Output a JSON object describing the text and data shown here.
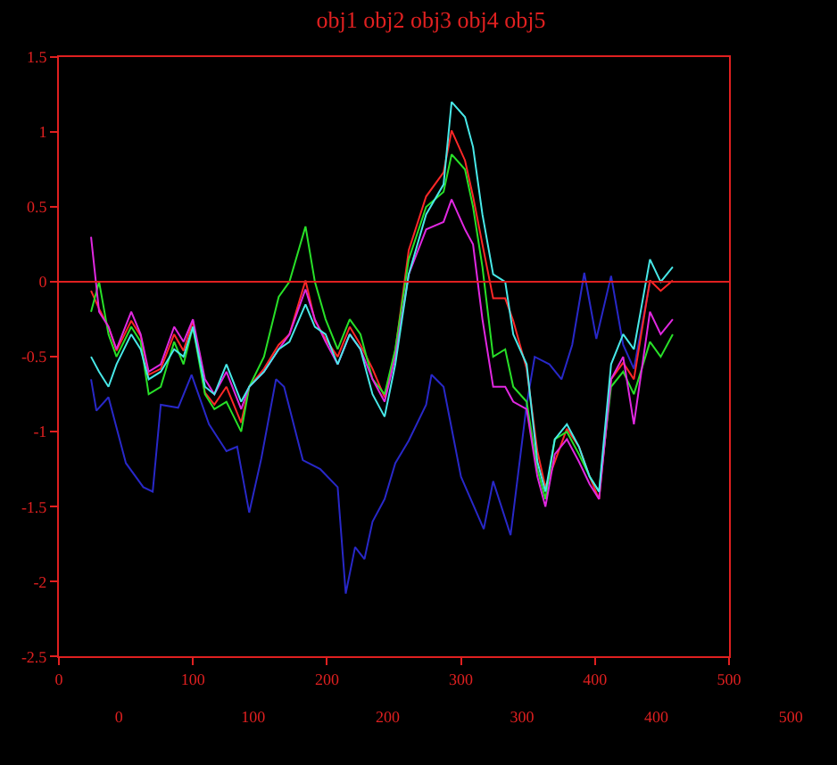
{
  "chart_data": {
    "type": "line",
    "title": "obj1 obj2 obj3 obj4 obj5",
    "x": [
      24,
      30,
      37,
      43,
      54,
      61,
      67,
      76,
      86,
      93,
      100,
      109,
      116,
      125,
      136,
      142,
      153,
      164,
      172,
      184,
      191,
      199,
      208,
      217,
      225,
      234,
      243,
      251,
      261,
      274,
      287,
      293,
      303,
      309,
      316,
      324,
      333,
      339,
      349,
      357,
      363,
      370,
      379,
      388,
      396,
      403,
      412,
      421,
      429,
      441,
      449,
      458
    ],
    "series": [
      {
        "color": "#2828c8",
        "x": [
          24,
          28,
          37,
          50,
          63,
          70,
          76,
          89,
          99,
          112,
          125,
          133,
          142,
          151,
          162,
          168,
          182,
          195,
          208,
          214,
          221,
          228,
          234,
          243,
          251,
          261,
          274,
          278,
          287,
          300,
          317,
          324,
          337,
          349,
          355,
          366,
          375,
          383,
          392,
          401,
          412,
          421,
          429,
          441
        ],
        "values": [
          -0.65,
          -0.86,
          -0.77,
          -1.21,
          -1.37,
          -1.4,
          -0.82,
          -0.84,
          -0.62,
          -0.95,
          -1.13,
          -1.1,
          -1.54,
          -1.18,
          -0.65,
          -0.7,
          -1.19,
          -1.25,
          -1.37,
          -2.08,
          -1.77,
          -1.85,
          -1.6,
          -1.45,
          -1.21,
          -1.06,
          -0.82,
          -0.62,
          -0.7,
          -1.3,
          -1.65,
          -1.33,
          -1.69,
          -0.82,
          -0.5,
          -0.55,
          -0.65,
          -0.42,
          0.06,
          -0.38,
          0.04,
          -0.42,
          -0.58,
          0.0
        ]
      },
      {
        "color": "#ff2828",
        "values": [
          -0.06,
          -0.18,
          -0.3,
          -0.46,
          -0.26,
          -0.36,
          -0.62,
          -0.58,
          -0.35,
          -0.46,
          -0.26,
          -0.74,
          -0.82,
          -0.7,
          -0.94,
          -0.7,
          -0.58,
          -0.42,
          -0.35,
          0.01,
          -0.26,
          -0.38,
          -0.5,
          -0.3,
          -0.42,
          -0.58,
          -0.77,
          -0.46,
          0.21,
          0.57,
          0.73,
          1.01,
          0.81,
          0.57,
          0.25,
          -0.11,
          -0.11,
          -0.26,
          -0.58,
          -1.13,
          -1.37,
          -1.2,
          -0.98,
          -1.1,
          -1.3,
          -1.45,
          -0.65,
          -0.54,
          -0.65,
          0.01,
          -0.06,
          0.01
        ]
      },
      {
        "color": "#28e028",
        "values": [
          -0.2,
          0.0,
          -0.35,
          -0.5,
          -0.3,
          -0.4,
          -0.75,
          -0.7,
          -0.4,
          -0.55,
          -0.3,
          -0.75,
          -0.85,
          -0.8,
          -1.0,
          -0.7,
          -0.5,
          -0.1,
          0.0,
          0.37,
          0.0,
          -0.25,
          -0.45,
          -0.25,
          -0.35,
          -0.65,
          -0.75,
          -0.45,
          0.15,
          0.5,
          0.6,
          0.85,
          0.75,
          0.5,
          0.1,
          -0.5,
          -0.45,
          -0.7,
          -0.8,
          -1.25,
          -1.45,
          -1.05,
          -1.0,
          -1.15,
          -1.3,
          -1.4,
          -0.7,
          -0.6,
          -0.75,
          -0.4,
          -0.5,
          -0.35
        ]
      },
      {
        "color": "#e028e0",
        "values": [
          0.3,
          -0.2,
          -0.3,
          -0.45,
          -0.2,
          -0.35,
          -0.6,
          -0.55,
          -0.3,
          -0.4,
          -0.25,
          -0.65,
          -0.75,
          -0.6,
          -0.85,
          -0.7,
          -0.6,
          -0.45,
          -0.35,
          -0.05,
          -0.25,
          -0.4,
          -0.55,
          -0.35,
          -0.45,
          -0.65,
          -0.8,
          -0.5,
          0.05,
          0.35,
          0.4,
          0.55,
          0.35,
          0.25,
          -0.25,
          -0.7,
          -0.7,
          -0.8,
          -0.85,
          -1.3,
          -1.5,
          -1.15,
          -1.05,
          -1.2,
          -1.35,
          -1.45,
          -0.65,
          -0.5,
          -0.95,
          -0.2,
          -0.35,
          -0.25
        ]
      },
      {
        "color": "#48e8e8",
        "values": [
          -0.5,
          -0.6,
          -0.7,
          -0.55,
          -0.35,
          -0.45,
          -0.65,
          -0.6,
          -0.45,
          -0.5,
          -0.3,
          -0.7,
          -0.75,
          -0.55,
          -0.8,
          -0.7,
          -0.6,
          -0.45,
          -0.4,
          -0.15,
          -0.3,
          -0.35,
          -0.55,
          -0.35,
          -0.45,
          -0.75,
          -0.9,
          -0.55,
          0.05,
          0.45,
          0.65,
          1.2,
          1.1,
          0.9,
          0.45,
          0.05,
          0.0,
          -0.35,
          -0.55,
          -1.2,
          -1.4,
          -1.05,
          -0.95,
          -1.1,
          -1.3,
          -1.4,
          -0.55,
          -0.35,
          -0.45,
          0.15,
          0.0,
          0.1
        ]
      }
    ],
    "xlim": [
      0,
      500
    ],
    "xticks": [
      0,
      100,
      200,
      300,
      400,
      500
    ],
    "x2lim": [
      0,
      500
    ],
    "x2ticks": [
      0,
      100,
      200,
      300,
      400,
      500
    ],
    "ylim": [
      -2.5,
      1.5
    ],
    "yticks": [
      -2.5,
      -2,
      -1.5,
      -1,
      -0.5,
      0,
      0.5,
      1,
      1.5
    ],
    "ref_lines": [
      {
        "axis": "y",
        "value": 0,
        "color": "#e02020"
      }
    ],
    "grid": false
  }
}
